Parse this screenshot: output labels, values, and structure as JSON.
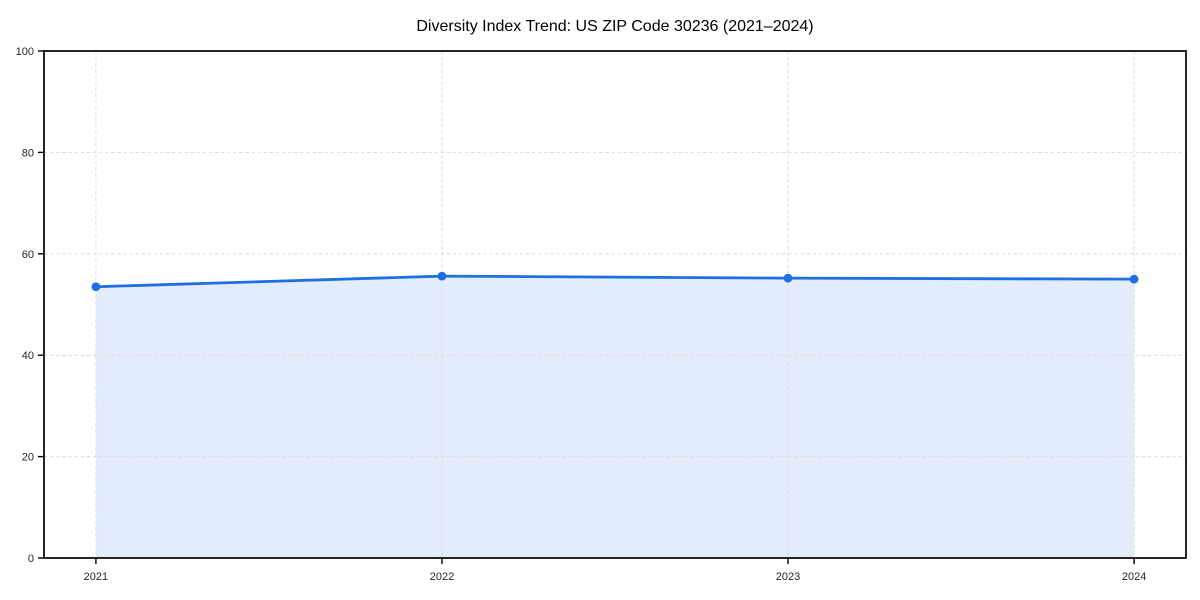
{
  "chart_data": {
    "type": "area",
    "title": "Diversity Index Trend: US ZIP Code 30236 (2021–2024)",
    "x": [
      2021,
      2022,
      2023,
      2024
    ],
    "x_tick_labels": [
      "2021",
      "2022",
      "2023",
      "2024"
    ],
    "series": [
      {
        "name": "Diversity Index",
        "values": [
          53.5,
          55.6,
          55.2,
          55.0
        ]
      }
    ],
    "xlabel": "",
    "ylabel": "",
    "ylim": [
      0,
      100
    ],
    "yticks": [
      0,
      20,
      40,
      60,
      80,
      100
    ],
    "y_tick_labels": [
      "0",
      "20",
      "40",
      "60",
      "80",
      "100"
    ],
    "x_margin_fraction": 0.05,
    "grid": true,
    "grid_style": "dashed",
    "legend_position": "none",
    "colors": {
      "line": "#1f6fe0",
      "fill": "rgba(31,111,224,0.13)",
      "grid": "#dcdcdc",
      "spine": "#000000",
      "title_text": "#000000",
      "tick_text": "#262626",
      "background": "#ffffff"
    }
  }
}
